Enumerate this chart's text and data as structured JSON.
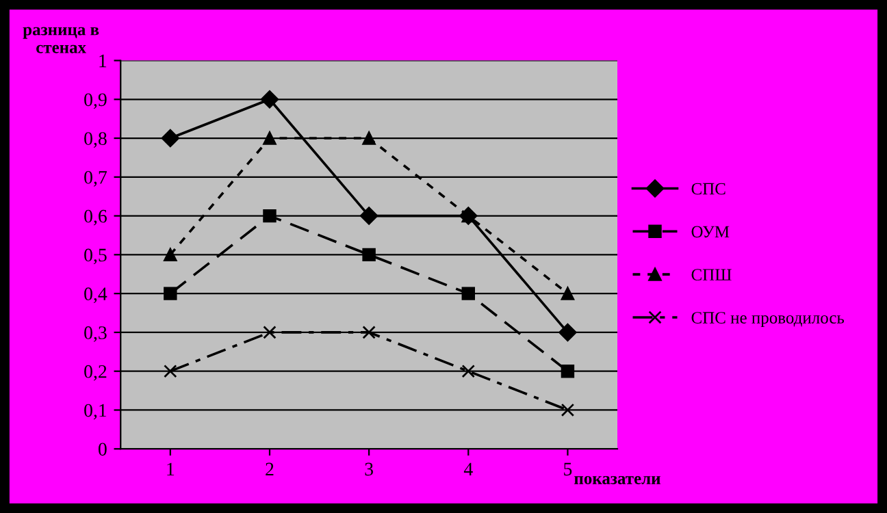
{
  "chart_data": {
    "type": "line",
    "categories": [
      "1",
      "2",
      "3",
      "4",
      "5"
    ],
    "series": [
      {
        "name": "СПС",
        "color": "#000000",
        "values": [
          0.8,
          0.9,
          0.6,
          0.6,
          0.3
        ],
        "marker": "diamond",
        "line_style": "solid"
      },
      {
        "name": "ОУМ",
        "color": "#000000",
        "values": [
          0.4,
          0.6,
          0.5,
          0.4,
          0.2
        ],
        "marker": "square",
        "line_style": "dashed"
      },
      {
        "name": "СПШ",
        "color": "#000000",
        "values": [
          0.5,
          0.8,
          0.8,
          0.6,
          0.4
        ],
        "marker": "triangle",
        "line_style": "dotted"
      },
      {
        "name": "СПС не проводилось",
        "color": "#000000",
        "values": [
          0.2,
          0.3,
          0.3,
          0.2,
          0.1
        ],
        "marker": "cross",
        "line_style": "dashed"
      }
    ],
    "ylabel": "разница в стенах",
    "xlabel": "показатели",
    "ylim": [
      0,
      1
    ],
    "yticks": [
      0,
      {
        "value": 0.1,
        "label": "0,1"
      },
      {
        "value": 0.2,
        "label": "0,2"
      },
      {
        "value": 0.3,
        "label": "0,3"
      },
      {
        "value": 0.4,
        "label": "0,4"
      },
      {
        "value": 0.5,
        "label": "0,5"
      },
      {
        "value": 0.6,
        "label": "0,6"
      },
      {
        "value": 0.7,
        "label": "0,7"
      },
      {
        "value": 0.8,
        "label": "0,8"
      },
      {
        "value": 0.9,
        "label": "0,9"
      },
      1
    ],
    "grid": "y",
    "legend": "right"
  }
}
